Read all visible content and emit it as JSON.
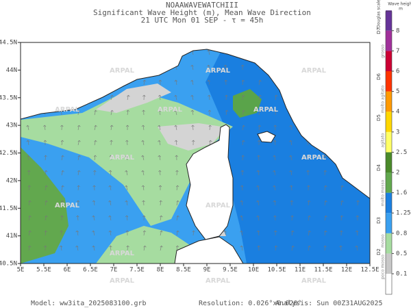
{
  "header": {
    "lines": [
      "NOAAWAVEWATCHIII",
      "Significant Wave Height (m), Mean Wave Direction",
      "21 UTC Mon 01 SEP  -  τ = 45h"
    ]
  },
  "map": {
    "lon_labels": [
      "5E",
      "5.5E",
      "6E",
      "6.5E",
      "7E",
      "7.5E",
      "8E",
      "8.5E",
      "9E",
      "9.5E",
      "10E",
      "10.5E",
      "11E",
      "11.5E",
      "12E",
      "12.5E"
    ],
    "lat_labels": [
      "40.5N",
      "41N",
      "41.5N",
      "42N",
      "42.5N",
      "43N",
      "43.5N",
      "44N",
      "44.5N"
    ],
    "watermark": "ARPAL"
  },
  "colorbar": {
    "title": "Wave height",
    "unit": "m",
    "douglas_title": "Douglas scale",
    "values": [
      "0.1",
      "0.5",
      "0.8",
      "1.25",
      "1.6",
      "2",
      "2.5",
      "3",
      "4",
      "5",
      "6",
      "7",
      "8"
    ],
    "douglas_levels": [
      "D2",
      "D3",
      "D4",
      "D5",
      "D6",
      "D7"
    ],
    "sea_states": [
      "poco mosso",
      "mosso",
      "molto mosso",
      "agitato",
      "molto agitato",
      "grosso"
    ]
  },
  "footer": {
    "model": "Model: ww3ita_2025083100.grb",
    "resolution": "Resolution: 0.026°x0.020°",
    "analysis": "Analysis: Sun 00Z31AUG2025"
  }
}
